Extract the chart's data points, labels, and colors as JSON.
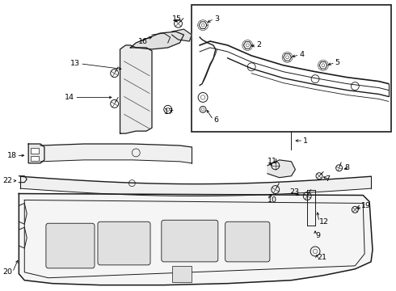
{
  "bg_color": "#ffffff",
  "line_color": "#1a1a1a",
  "label_color": "#000000",
  "fig_w": 4.9,
  "fig_h": 3.6,
  "dpi": 100
}
